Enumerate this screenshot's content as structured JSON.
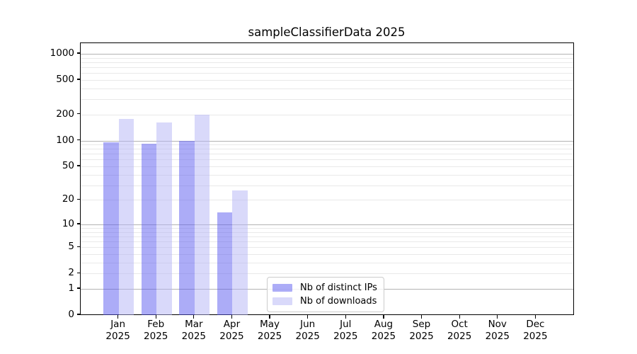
{
  "title": "sampleClassifierData 2025",
  "chart_data": {
    "type": "bar",
    "title": "sampleClassifierData 2025",
    "xlabel": "",
    "ylabel": "",
    "categories": [
      {
        "label": "Jan",
        "sublabel": "2025"
      },
      {
        "label": "Feb",
        "sublabel": "2025"
      },
      {
        "label": "Mar",
        "sublabel": "2025"
      },
      {
        "label": "Apr",
        "sublabel": "2025"
      },
      {
        "label": "May",
        "sublabel": "2025"
      },
      {
        "label": "Jun",
        "sublabel": "2025"
      },
      {
        "label": "Jul",
        "sublabel": "2025"
      },
      {
        "label": "Aug",
        "sublabel": "2025"
      },
      {
        "label": "Sep",
        "sublabel": "2025"
      },
      {
        "label": "Oct",
        "sublabel": "2025"
      },
      {
        "label": "Nov",
        "sublabel": "2025"
      },
      {
        "label": "Dec",
        "sublabel": "2025"
      }
    ],
    "series": [
      {
        "name": "Nb of distinct IPs",
        "color": "#a9a9f7",
        "fill": "rgba(90,90,240,0.5)",
        "values": [
          95,
          91,
          99,
          14,
          0,
          0,
          0,
          0,
          0,
          0,
          0,
          0
        ]
      },
      {
        "name": "Nb of downloads",
        "color": "#d9d9fa",
        "fill": "rgba(180,180,245,0.5)",
        "values": [
          177,
          162,
          199,
          26,
          0,
          0,
          0,
          0,
          0,
          0,
          0,
          0
        ]
      }
    ],
    "yscale": "log1p",
    "yticks": [
      0,
      1,
      2,
      5,
      10,
      20,
      50,
      100,
      200,
      500,
      1000
    ],
    "decade_ticks": [
      1,
      10,
      100,
      1000
    ],
    "ylim": [
      0,
      1325
    ],
    "grid": "both",
    "legend_position": "inside-bottom-center",
    "bar_width_fraction": 0.4
  }
}
